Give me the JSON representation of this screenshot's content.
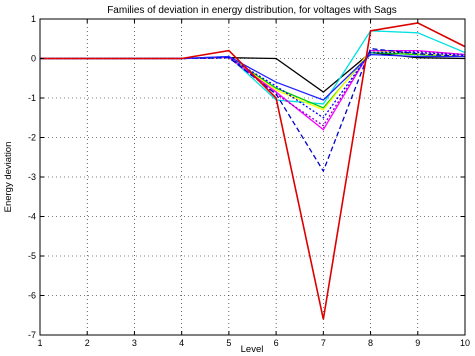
{
  "chart_data": {
    "type": "line",
    "title": "Families of deviation in energy distribution, for voltages with Sags",
    "xlabel": "Level",
    "ylabel": "Energy deviation",
    "xlim": [
      1,
      10
    ],
    "ylim": [
      -7,
      1
    ],
    "grid": "dotted",
    "x_ticks": [
      "1",
      "2",
      "3",
      "4",
      "5",
      "6",
      "7",
      "8",
      "9",
      "10"
    ],
    "y_ticks": [
      "1",
      "0",
      "-1",
      "-2",
      "-3",
      "-4",
      "-5",
      "-6",
      "-7"
    ],
    "x": [
      1,
      2,
      3,
      4,
      5,
      6,
      7,
      8,
      9,
      10
    ],
    "series": [
      {
        "color": "#000000",
        "dash": "",
        "values": [
          0,
          0,
          0,
          0,
          0.02,
          0.0,
          -0.85,
          0.15,
          0.02,
          0.0
        ]
      },
      {
        "color": "#00e0e0",
        "dash": "",
        "values": [
          0,
          0,
          0,
          0,
          0.05,
          -1.05,
          -1.15,
          0.7,
          0.65,
          0.15
        ]
      },
      {
        "color": "#00cc00",
        "dash": "",
        "values": [
          0,
          0,
          0,
          0,
          0.03,
          -0.75,
          -1.25,
          0.15,
          0.1,
          0.05
        ]
      },
      {
        "color": "#ffff00",
        "dash": "",
        "values": [
          0,
          0,
          0,
          0,
          0.02,
          -0.8,
          -1.3,
          0.2,
          0.12,
          0.05
        ]
      },
      {
        "color": "#ff00ff",
        "dash": "",
        "values": [
          0,
          0,
          0,
          0,
          0.03,
          -0.85,
          -1.8,
          0.2,
          0.2,
          0.1
        ]
      },
      {
        "color": "#8800cc",
        "dash": "2,2",
        "values": [
          0,
          0,
          0,
          0,
          0.02,
          -0.9,
          -1.7,
          0.2,
          0.18,
          0.1
        ]
      },
      {
        "color": "#0000ff",
        "dash": "2,2",
        "values": [
          0,
          0,
          0,
          0,
          0.02,
          -0.7,
          -1.5,
          0.15,
          0.15,
          0.08
        ]
      },
      {
        "color": "#0000cc",
        "dash": "5,3",
        "values": [
          0,
          0,
          0,
          0,
          0.02,
          -0.9,
          -2.85,
          0.25,
          0.12,
          0.05
        ]
      },
      {
        "color": "#2222ff",
        "dash": "",
        "values": [
          0,
          0,
          0,
          0,
          0.05,
          -0.6,
          -1.05,
          0.1,
          0.05,
          0.05
        ]
      },
      {
        "color": "#dd0000",
        "dash": "",
        "values": [
          0,
          0,
          0,
          0,
          0.2,
          -1.0,
          -6.6,
          0.7,
          0.9,
          0.3
        ]
      }
    ]
  }
}
